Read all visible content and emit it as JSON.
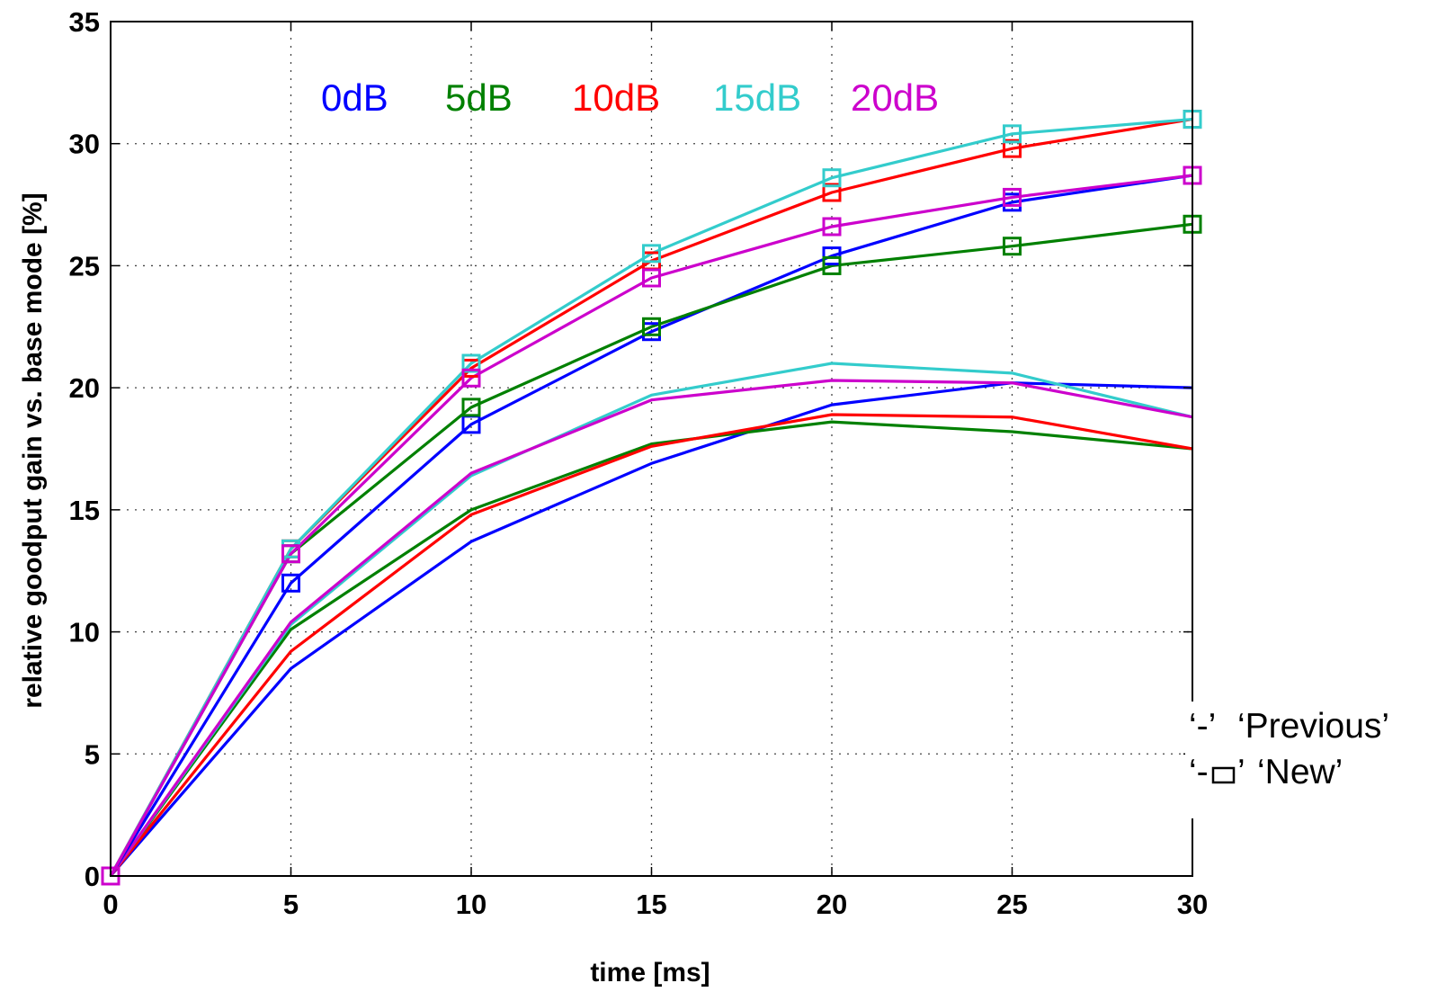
{
  "chart_data": {
    "type": "line",
    "xlabel": "time [ms]",
    "ylabel": "relative goodput gain vs. base mode [%]",
    "xlim": [
      0,
      30
    ],
    "ylim": [
      0,
      35
    ],
    "x_ticks": [
      0,
      5,
      10,
      15,
      20,
      25,
      30
    ],
    "y_ticks": [
      0,
      5,
      10,
      15,
      20,
      25,
      30,
      35
    ],
    "grid": true,
    "x": [
      0,
      5,
      10,
      15,
      20,
      25,
      30
    ],
    "series_labels": [
      {
        "text": "0dB",
        "color": "#0000ff"
      },
      {
        "text": "5dB",
        "color": "#008000"
      },
      {
        "text": "10dB",
        "color": "#ff0000"
      },
      {
        "text": "15dB",
        "color": "#33cccc"
      },
      {
        "text": "20dB",
        "color": "#cc00cc"
      }
    ],
    "legend": {
      "placement": "right-bottom",
      "entries": [
        {
          "symbol": "‘-’",
          "label": "‘Previous’",
          "marker": "none"
        },
        {
          "symbol_left": "‘-",
          "symbol_right": "’",
          "label": "‘New’",
          "marker": "square"
        }
      ]
    },
    "series": [
      {
        "name": "0dB",
        "variant": "Previous",
        "color": "#0000ff",
        "marker": "none",
        "values": [
          0,
          8.5,
          13.7,
          16.9,
          19.3,
          20.2,
          20.0
        ]
      },
      {
        "name": "5dB",
        "variant": "Previous",
        "color": "#008000",
        "marker": "none",
        "values": [
          0,
          10.1,
          15.0,
          17.7,
          18.6,
          18.2,
          17.5
        ]
      },
      {
        "name": "10dB",
        "variant": "Previous",
        "color": "#ff0000",
        "marker": "none",
        "values": [
          0,
          9.2,
          14.8,
          17.6,
          18.9,
          18.8,
          17.5
        ]
      },
      {
        "name": "15dB",
        "variant": "Previous",
        "color": "#33cccc",
        "marker": "none",
        "values": [
          0,
          10.3,
          16.4,
          19.7,
          21.0,
          20.6,
          18.8
        ]
      },
      {
        "name": "20dB",
        "variant": "Previous",
        "color": "#cc00cc",
        "marker": "none",
        "values": [
          0,
          10.4,
          16.5,
          19.5,
          20.3,
          20.2,
          18.8
        ]
      },
      {
        "name": "0dB",
        "variant": "New",
        "color": "#0000ff",
        "marker": "square",
        "values": [
          0,
          12.0,
          18.5,
          22.3,
          25.4,
          27.6,
          28.7
        ]
      },
      {
        "name": "5dB",
        "variant": "New",
        "color": "#008000",
        "marker": "square",
        "values": [
          0,
          13.2,
          19.2,
          22.5,
          25.0,
          25.8,
          26.7
        ]
      },
      {
        "name": "10dB",
        "variant": "New",
        "color": "#ff0000",
        "marker": "square",
        "values": [
          0,
          13.4,
          20.8,
          25.2,
          28.0,
          29.8,
          31.0
        ]
      },
      {
        "name": "15dB",
        "variant": "New",
        "color": "#33cccc",
        "marker": "square",
        "values": [
          0,
          13.4,
          21.0,
          25.5,
          28.6,
          30.4,
          31.0
        ]
      },
      {
        "name": "20dB",
        "variant": "New",
        "color": "#cc00cc",
        "marker": "square",
        "values": [
          0,
          13.2,
          20.4,
          24.5,
          26.6,
          27.8,
          28.7
        ]
      }
    ]
  }
}
